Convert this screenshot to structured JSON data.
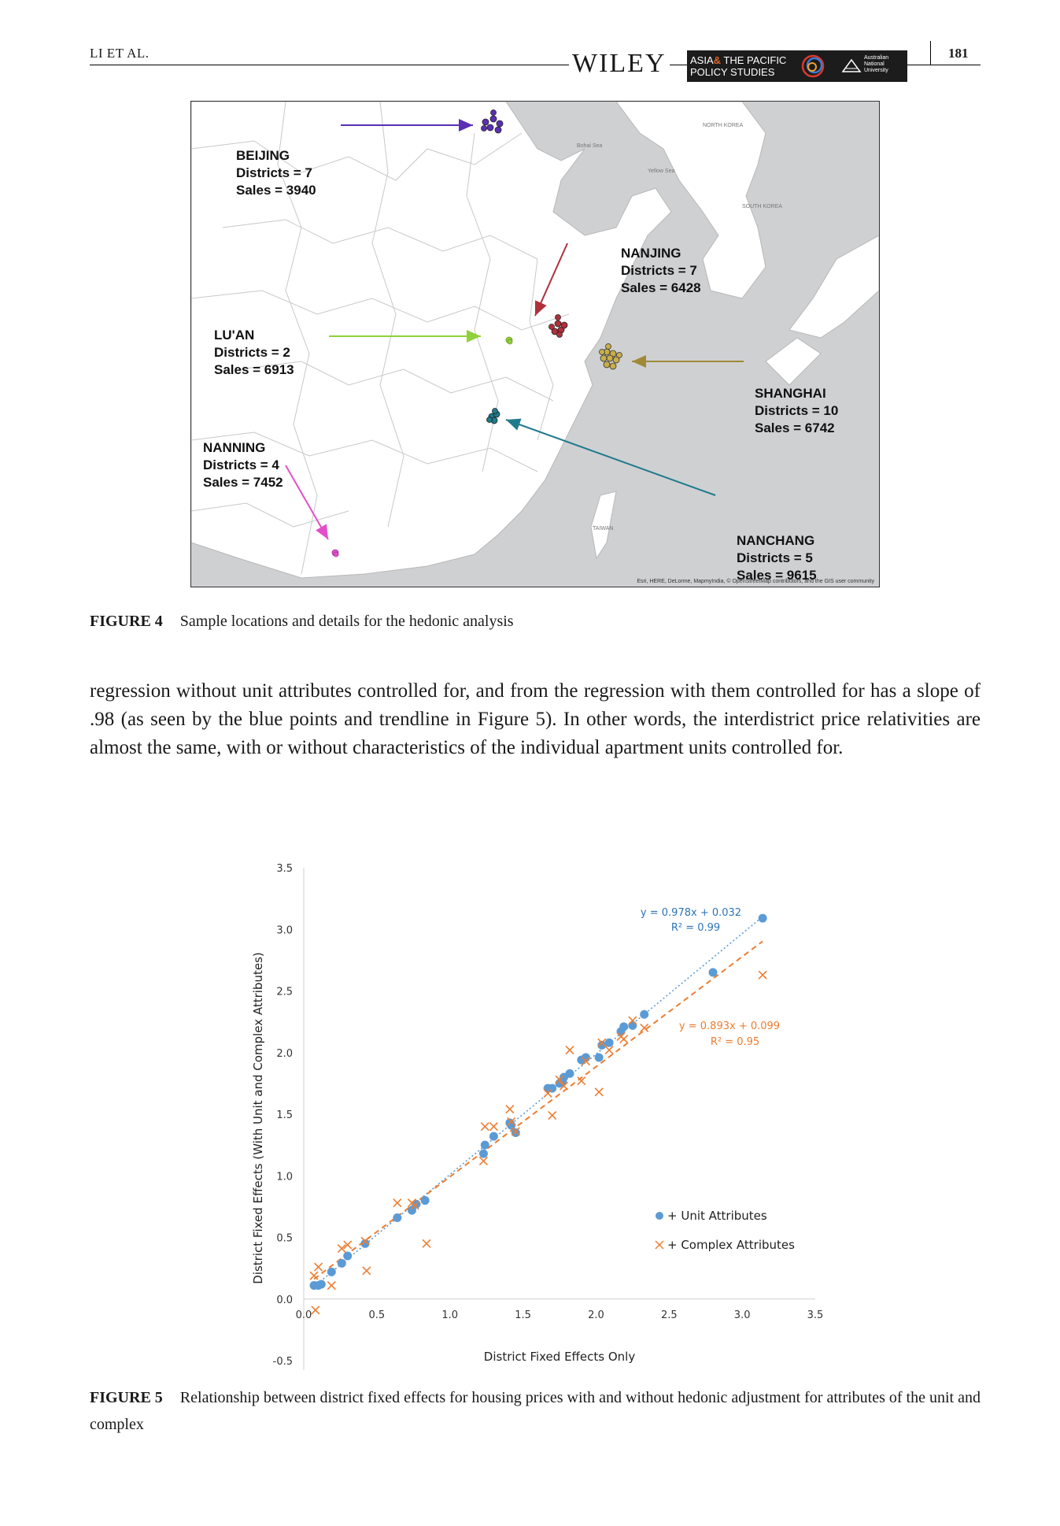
{
  "header": {
    "running_head": "LI ET AL.",
    "page_number": "181",
    "publisher": "WILEY",
    "journal_line1_a": "ASIA",
    "journal_line1_amp": "&",
    "journal_line1_b": " THE PACIFIC",
    "journal_line2": "POLICY STUDIES",
    "university": "Australian National University"
  },
  "figure4": {
    "caption_label": "FIGURE 4",
    "caption_text": "Sample locations and details for the hedonic analysis",
    "attribution": "Esri, HERE, DeLorme, MapmyIndia, © OpenStreetMap contributors, and the GIS user community",
    "cities": [
      {
        "name": "BEIJING",
        "districts": "Districts = 7",
        "sales": "Sales = 3940",
        "color": "#5b2fb5"
      },
      {
        "name": "NANJING",
        "districts": "Districts = 7",
        "sales": "Sales = 6428",
        "color": "#b0303a"
      },
      {
        "name": "LU'AN",
        "districts": "Districts = 2",
        "sales": "Sales = 6913",
        "color": "#8fd13a"
      },
      {
        "name": "SHANGHAI",
        "districts": "Districts = 10",
        "sales": "Sales = 6742",
        "color": "#b59a3a"
      },
      {
        "name": "NANNING",
        "districts": "Districts = 4",
        "sales": "Sales = 7452",
        "color": "#e34fc9"
      },
      {
        "name": "NANCHANG",
        "districts": "Districts = 5",
        "sales": "Sales = 9615",
        "color": "#1f7a8c"
      }
    ],
    "map_place_labels": [
      "NORTH KOREA",
      "SOUTH KOREA",
      "TAIWAN",
      "Bohai Sea",
      "Yellow Sea"
    ]
  },
  "body_paragraph": "regression without unit attributes controlled for, and from the regression with them controlled for has a slope of .98 (as seen by the blue points and trendline in Figure 5). In other words, the interdistrict price relativities are almost the same, with or without characteristics of the individual apartment units controlled for.",
  "figure5": {
    "caption_label": "FIGURE 5",
    "caption_text": "Relationship between district fixed effects for housing prices with and without hedonic adjustment for attributes of the unit and complex"
  },
  "chart_data": {
    "type": "scatter",
    "xlabel": "District Fixed Effects Only",
    "ylabel": "District Fixed Effects (With Unit and Complex Attributes)",
    "xlim": [
      0,
      3.5
    ],
    "ylim": [
      -0.5,
      3.5
    ],
    "x_ticks": [
      "0.0",
      "0.5",
      "1.0",
      "1.5",
      "2.0",
      "2.5",
      "3.0",
      "3.5"
    ],
    "y_ticks": [
      "-0.5",
      "0.0",
      "0.5",
      "1.0",
      "1.5",
      "2.0",
      "2.5",
      "3.0",
      "3.5"
    ],
    "legend_position": "right-middle",
    "series": [
      {
        "name": "+ Unit Attributes",
        "marker": "circle",
        "color": "#5b9bd5",
        "trendline": {
          "slope": 0.978,
          "intercept": 0.032,
          "equation": "y = 0.978x + 0.032",
          "r2": "R² = 0.99",
          "style": "dotted"
        },
        "points": [
          [
            0.07,
            0.11
          ],
          [
            0.1,
            0.11
          ],
          [
            0.12,
            0.12
          ],
          [
            0.19,
            0.22
          ],
          [
            0.26,
            0.29
          ],
          [
            0.3,
            0.35
          ],
          [
            0.42,
            0.45
          ],
          [
            0.64,
            0.66
          ],
          [
            0.74,
            0.72
          ],
          [
            0.77,
            0.77
          ],
          [
            0.83,
            0.8
          ],
          [
            1.23,
            1.18
          ],
          [
            1.24,
            1.25
          ],
          [
            1.3,
            1.32
          ],
          [
            1.41,
            1.43
          ],
          [
            1.42,
            1.41
          ],
          [
            1.45,
            1.35
          ],
          [
            1.67,
            1.71
          ],
          [
            1.7,
            1.71
          ],
          [
            1.75,
            1.75
          ],
          [
            1.77,
            1.77
          ],
          [
            1.78,
            1.8
          ],
          [
            1.82,
            1.83
          ],
          [
            1.9,
            1.94
          ],
          [
            1.93,
            1.96
          ],
          [
            2.02,
            1.96
          ],
          [
            2.04,
            2.06
          ],
          [
            2.09,
            2.08
          ],
          [
            2.17,
            2.17
          ],
          [
            2.19,
            2.21
          ],
          [
            2.25,
            2.22
          ],
          [
            2.33,
            2.31
          ],
          [
            2.8,
            2.65
          ],
          [
            3.14,
            3.09
          ]
        ]
      },
      {
        "name": "+ Complex Attributes",
        "marker": "x",
        "color": "#ed7d31",
        "trendline": {
          "slope": 0.893,
          "intercept": 0.099,
          "equation": "y = 0.893x + 0.099",
          "r2": "R² = 0.95",
          "style": "dashed"
        },
        "points": [
          [
            0.07,
            0.19
          ],
          [
            0.08,
            -0.09
          ],
          [
            0.1,
            0.26
          ],
          [
            0.19,
            0.11
          ],
          [
            0.26,
            0.41
          ],
          [
            0.3,
            0.44
          ],
          [
            0.42,
            0.47
          ],
          [
            0.43,
            0.23
          ],
          [
            0.64,
            0.78
          ],
          [
            0.74,
            0.78
          ],
          [
            0.76,
            0.76
          ],
          [
            0.84,
            0.45
          ],
          [
            1.23,
            1.12
          ],
          [
            1.24,
            1.4
          ],
          [
            1.3,
            1.4
          ],
          [
            1.41,
            1.54
          ],
          [
            1.42,
            1.44
          ],
          [
            1.45,
            1.36
          ],
          [
            1.67,
            1.67
          ],
          [
            1.7,
            1.49
          ],
          [
            1.75,
            1.78
          ],
          [
            1.78,
            1.73
          ],
          [
            1.82,
            2.02
          ],
          [
            1.9,
            1.77
          ],
          [
            1.93,
            1.93
          ],
          [
            2.02,
            1.68
          ],
          [
            2.04,
            2.08
          ],
          [
            2.09,
            2.02
          ],
          [
            2.17,
            2.13
          ],
          [
            2.19,
            2.11
          ],
          [
            2.25,
            2.26
          ],
          [
            2.33,
            2.2
          ],
          [
            3.14,
            2.63
          ]
        ]
      }
    ]
  }
}
